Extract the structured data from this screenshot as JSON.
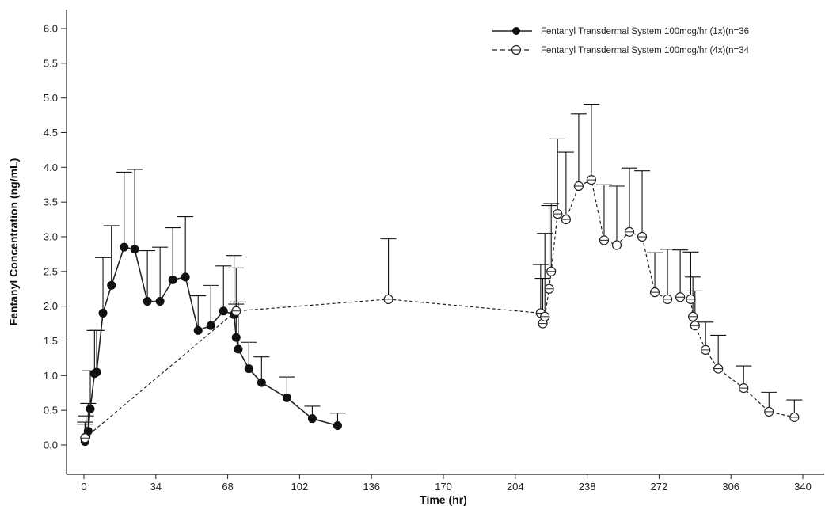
{
  "chart_data": {
    "type": "line",
    "title": "",
    "xlabel": "Time (hr)",
    "ylabel": "Fentanyl Concentration (ng/mL)",
    "xlim": [
      0,
      340
    ],
    "ylim": [
      0,
      6
    ],
    "x_ticks": [
      0,
      34,
      68,
      102,
      136,
      170,
      204,
      238,
      272,
      306,
      340
    ],
    "y_ticks": [
      0,
      0.5,
      1,
      1.5,
      2,
      2.5,
      3,
      3.5,
      4,
      4.5,
      5,
      5.5,
      6
    ],
    "x_tick_labels": [
      "0",
      "34",
      "68",
      "102",
      "136",
      "170",
      "204",
      "238",
      "272",
      "306",
      "340"
    ],
    "y_tick_labels": [
      "0.0",
      "0.5",
      "1.0",
      "1.5",
      "2.0",
      "2.5",
      "3.0",
      "3.5",
      "4.0",
      "4.5",
      "5.0",
      "5.5",
      "6.0"
    ],
    "grid": false,
    "legend_position": "top-right",
    "error_bars": "upper",
    "series": [
      {
        "name": "Fentanyl Transdermal System 100mcg/hr (1x)(n=36",
        "line_style": "solid",
        "marker": "filled-circle",
        "points": [
          {
            "x": 0.5,
            "y": 0.05,
            "err": 0.28
          },
          {
            "x": 1,
            "y": 0.12,
            "err": 0.3
          },
          {
            "x": 2,
            "y": 0.2,
            "err": 0.4
          },
          {
            "x": 3,
            "y": 0.52,
            "err": 0.55
          },
          {
            "x": 5,
            "y": 1.03,
            "err": 0.62
          },
          {
            "x": 6,
            "y": 1.05,
            "err": 0.6
          },
          {
            "x": 9,
            "y": 1.9,
            "err": 0.8
          },
          {
            "x": 13,
            "y": 2.3,
            "err": 0.86
          },
          {
            "x": 19,
            "y": 2.85,
            "err": 1.08
          },
          {
            "x": 24,
            "y": 2.82,
            "err": 1.15
          },
          {
            "x": 30,
            "y": 2.07,
            "err": 0.73
          },
          {
            "x": 36,
            "y": 2.07,
            "err": 0.78
          },
          {
            "x": 42,
            "y": 2.38,
            "err": 0.75
          },
          {
            "x": 48,
            "y": 2.42,
            "err": 0.87
          },
          {
            "x": 54,
            "y": 1.65,
            "err": 0.5
          },
          {
            "x": 60,
            "y": 1.72,
            "err": 0.58
          },
          {
            "x": 66,
            "y": 1.93,
            "err": 0.65
          },
          {
            "x": 71,
            "y": 1.88,
            "err": 0.85
          },
          {
            "x": 72,
            "y": 1.55,
            "err": 1.0
          },
          {
            "x": 73,
            "y": 1.38,
            "err": 0.68
          },
          {
            "x": 78,
            "y": 1.1,
            "err": 0.38
          },
          {
            "x": 84,
            "y": 0.9,
            "err": 0.37
          },
          {
            "x": 96,
            "y": 0.68,
            "err": 0.3
          },
          {
            "x": 108,
            "y": 0.38,
            "err": 0.18
          },
          {
            "x": 120,
            "y": 0.28,
            "err": 0.18
          }
        ]
      },
      {
        "name": "Fentanyl Transdermal System 100mcg/hr (4x)(n=34",
        "line_style": "dashed",
        "marker": "open-circle",
        "points": [
          {
            "x": 0.5,
            "y": 0.1,
            "err": 0.2
          },
          {
            "x": 72,
            "y": 1.93,
            "err": 0.1
          },
          {
            "x": 144,
            "y": 2.1,
            "err": 0.87
          },
          {
            "x": 216,
            "y": 1.9,
            "err": 0.7
          },
          {
            "x": 217,
            "y": 1.75,
            "err": 0.65
          },
          {
            "x": 218,
            "y": 1.85,
            "err": 1.2
          },
          {
            "x": 220,
            "y": 2.25,
            "err": 1.2
          },
          {
            "x": 221,
            "y": 2.5,
            "err": 0.98
          },
          {
            "x": 224,
            "y": 3.33,
            "err": 1.08
          },
          {
            "x": 228,
            "y": 3.25,
            "err": 0.97
          },
          {
            "x": 234,
            "y": 3.73,
            "err": 1.04
          },
          {
            "x": 240,
            "y": 3.82,
            "err": 1.09
          },
          {
            "x": 246,
            "y": 2.95,
            "err": 0.8
          },
          {
            "x": 252,
            "y": 2.88,
            "err": 0.85
          },
          {
            "x": 258,
            "y": 3.07,
            "err": 0.92
          },
          {
            "x": 264,
            "y": 3.0,
            "err": 0.95
          },
          {
            "x": 270,
            "y": 2.2,
            "err": 0.57
          },
          {
            "x": 276,
            "y": 2.1,
            "err": 0.72
          },
          {
            "x": 282,
            "y": 2.13,
            "err": 0.68
          },
          {
            "x": 287,
            "y": 2.1,
            "err": 0.68
          },
          {
            "x": 288,
            "y": 1.85,
            "err": 0.57
          },
          {
            "x": 289,
            "y": 1.72,
            "err": 0.5
          },
          {
            "x": 294,
            "y": 1.37,
            "err": 0.4
          },
          {
            "x": 300,
            "y": 1.1,
            "err": 0.48
          },
          {
            "x": 312,
            "y": 0.82,
            "err": 0.32
          },
          {
            "x": 324,
            "y": 0.48,
            "err": 0.28
          },
          {
            "x": 336,
            "y": 0.4,
            "err": 0.25
          }
        ]
      }
    ]
  }
}
